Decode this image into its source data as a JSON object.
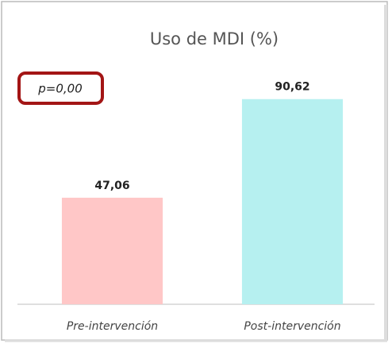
{
  "chart_data": {
    "type": "bar",
    "title": "Uso de MDI (%)",
    "categories": [
      "Pre-intervención",
      "Post-intervención"
    ],
    "values": [
      47.06,
      90.62
    ],
    "value_labels": [
      "47,06",
      "90,62"
    ],
    "colors": [
      "#ffc7c7",
      "#b6f0f0"
    ],
    "ylim": [
      0,
      100
    ],
    "annotation": "p=0,00"
  }
}
